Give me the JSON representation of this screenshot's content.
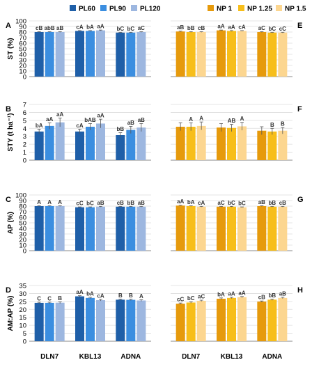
{
  "colors": {
    "PL60": "#1f5fa8",
    "PL90": "#3b8ee0",
    "PL120": "#9db7e0",
    "NP 1": "#e69a0c",
    "NP 1.25": "#f7be1a",
    "NP 1.5": "#fcd690"
  },
  "legend_left": [
    "PL60",
    "PL90",
    "PL120"
  ],
  "legend_right": [
    "NP 1",
    "NP 1.25",
    "NP 1.5"
  ],
  "chart_data": [
    {
      "type": "bar",
      "panel": "A",
      "ylabel": "ST (%)",
      "ylim": [
        0,
        100
      ],
      "yticks": [
        "0",
        "10",
        "20",
        "30",
        "40",
        "50",
        "60",
        "70",
        "80",
        "90",
        "100"
      ],
      "categories": [
        "DLN7",
        "KBL13",
        "ADNA"
      ],
      "series": [
        {
          "name": "PL60",
          "values": [
            80,
            82,
            79
          ],
          "errors": [
            0.6,
            0.6,
            0.6
          ]
        },
        {
          "name": "PL90",
          "values": [
            80,
            82,
            79
          ],
          "errors": [
            0.6,
            0.6,
            0.6
          ]
        },
        {
          "name": "PL120",
          "values": [
            80,
            83,
            80
          ],
          "errors": [
            0.6,
            0.6,
            0.6
          ]
        }
      ],
      "labels": [
        [
          "cB",
          "cA",
          "bC"
        ],
        [
          "abB",
          "bA",
          "bC"
        ],
        [
          "aB",
          "aA",
          "aC"
        ]
      ],
      "grid": true
    },
    {
      "type": "bar",
      "panel": "E",
      "ylim": [
        0,
        100
      ],
      "yticks": [
        "0",
        "10",
        "20",
        "30",
        "40",
        "50",
        "60",
        "70",
        "80",
        "90",
        "100"
      ],
      "categories": [
        "DLN7",
        "KBL13",
        "ADNA"
      ],
      "series": [
        {
          "name": "NP 1",
          "values": [
            81,
            83,
            80
          ],
          "errors": [
            0.6,
            0.6,
            0.6
          ]
        },
        {
          "name": "NP 1.25",
          "values": [
            80,
            82,
            79
          ],
          "errors": [
            0.6,
            0.6,
            0.6
          ]
        },
        {
          "name": "NP 1.5",
          "values": [
            80,
            82,
            79
          ],
          "errors": [
            0.6,
            0.6,
            0.6
          ]
        }
      ],
      "labels": [
        [
          "aB",
          "aA",
          "aC"
        ],
        [
          "bB",
          "aA",
          "bC"
        ],
        [
          "cB",
          "cA",
          "cC"
        ]
      ],
      "grid": true
    },
    {
      "type": "bar",
      "panel": "B",
      "ylabel": "STY (t ha⁻¹)",
      "ylim": [
        0,
        7
      ],
      "yticks": [
        "0",
        "1",
        "2",
        "3",
        "4",
        "5",
        "6",
        "7"
      ],
      "categories": [
        "DLN7",
        "KBL13",
        "ADNA"
      ],
      "series": [
        {
          "name": "PL60",
          "values": [
            3.6,
            3.6,
            3.15
          ],
          "errors": [
            0.3,
            0.3,
            0.3
          ]
        },
        {
          "name": "PL90",
          "values": [
            4.3,
            4.2,
            3.8
          ],
          "errors": [
            0.4,
            0.4,
            0.45
          ]
        },
        {
          "name": "PL120",
          "values": [
            4.75,
            4.6,
            4.1
          ],
          "errors": [
            0.55,
            0.55,
            0.5
          ]
        }
      ],
      "labels": [
        [
          "bA",
          "cA",
          "bB"
        ],
        [
          "aA",
          "bAB",
          "aB"
        ],
        [
          "aA",
          "aA",
          "aB"
        ]
      ],
      "grid": true
    },
    {
      "type": "bar",
      "panel": "F",
      "ylim": [
        0,
        7
      ],
      "yticks": [
        "0",
        "1",
        "2",
        "3",
        "4",
        "5",
        "6",
        "7"
      ],
      "categories": [
        "DLN7",
        "KBL13",
        "ADNA"
      ],
      "series": [
        {
          "name": "NP 1",
          "values": [
            4.2,
            4.1,
            3.7
          ],
          "errors": [
            0.5,
            0.5,
            0.5
          ]
        },
        {
          "name": "NP 1.25",
          "values": [
            4.2,
            4.05,
            3.6
          ],
          "errors": [
            0.5,
            0.45,
            0.4
          ]
        },
        {
          "name": "NP 1.5",
          "values": [
            4.3,
            4.25,
            3.7
          ],
          "errors": [
            0.5,
            0.5,
            0.4
          ]
        }
      ],
      "labels": [
        [
          "",
          "",
          ""
        ],
        [
          "A",
          "AB",
          "B"
        ],
        [
          "A",
          "A",
          "B"
        ]
      ],
      "grid": true
    },
    {
      "type": "bar",
      "panel": "C",
      "ylabel": "AP (%)",
      "ylim": [
        0,
        100
      ],
      "yticks": [
        "0",
        "10",
        "20",
        "30",
        "40",
        "50",
        "60",
        "70",
        "80",
        "90",
        "100"
      ],
      "categories": [
        "DLN7",
        "KBL13",
        "ADNA"
      ],
      "series": [
        {
          "name": "PL60",
          "values": [
            80,
            78,
            79
          ],
          "errors": [
            0.6,
            0.6,
            0.6
          ]
        },
        {
          "name": "PL90",
          "values": [
            80,
            78,
            79
          ],
          "errors": [
            0.6,
            0.6,
            0.6
          ]
        },
        {
          "name": "PL120",
          "values": [
            80,
            79,
            79
          ],
          "errors": [
            0.6,
            0.6,
            0.6
          ]
        }
      ],
      "labels": [
        [
          "A",
          "cC",
          "cB"
        ],
        [
          "A",
          "bC",
          "bB"
        ],
        [
          "A",
          "aB",
          "aB"
        ]
      ],
      "grid": true
    },
    {
      "type": "bar",
      "panel": "G",
      "ylim": [
        0,
        100
      ],
      "yticks": [
        "0",
        "10",
        "20",
        "30",
        "40",
        "50",
        "60",
        "70",
        "80",
        "90",
        "100"
      ],
      "categories": [
        "DLN7",
        "KBL13",
        "ADNA"
      ],
      "series": [
        {
          "name": "NP 1",
          "values": [
            81,
            79,
            80
          ],
          "errors": [
            0.6,
            0.6,
            0.6
          ]
        },
        {
          "name": "NP 1.25",
          "values": [
            80,
            79,
            79
          ],
          "errors": [
            0.6,
            0.6,
            0.6
          ]
        },
        {
          "name": "NP 1.5",
          "values": [
            79,
            78,
            79
          ],
          "errors": [
            0.6,
            0.6,
            0.6
          ]
        }
      ],
      "labels": [
        [
          "aA",
          "aC",
          "aB"
        ],
        [
          "bA",
          "bC",
          "bB"
        ],
        [
          "cA",
          "bC",
          "cB"
        ]
      ],
      "grid": true
    },
    {
      "type": "bar",
      "panel": "D",
      "ylabel": "AM:AP (%)",
      "ylim": [
        0,
        35
      ],
      "yticks": [
        "0",
        "5",
        "10",
        "15",
        "20",
        "25",
        "30",
        "35"
      ],
      "categories": [
        "DLN7",
        "KBL13",
        "ADNA"
      ],
      "series": [
        {
          "name": "PL60",
          "values": [
            24.1,
            28.2,
            26.1
          ],
          "errors": [
            0.4,
            0.4,
            0.4
          ]
        },
        {
          "name": "PL90",
          "values": [
            24.1,
            27.2,
            26.0
          ],
          "errors": [
            0.4,
            0.4,
            0.4
          ]
        },
        {
          "name": "PL120",
          "values": [
            24.2,
            25.8,
            25.6
          ],
          "errors": [
            0.5,
            0.5,
            0.5
          ]
        }
      ],
      "labels": [
        [
          "C",
          "aA",
          "B"
        ],
        [
          "C",
          "bA",
          "B"
        ],
        [
          "B",
          "cA",
          "A"
        ]
      ],
      "grid": true
    },
    {
      "type": "bar",
      "panel": "H",
      "ylim": [
        0,
        35
      ],
      "yticks": [
        "0",
        "5",
        "10",
        "15",
        "20",
        "25",
        "30",
        "35"
      ],
      "categories": [
        "DLN7",
        "KBL13",
        "ADNA"
      ],
      "series": [
        {
          "name": "NP 1",
          "values": [
            23.6,
            26.7,
            24.9
          ],
          "errors": [
            0.4,
            0.5,
            0.4
          ]
        },
        {
          "name": "NP 1.25",
          "values": [
            24.3,
            27.2,
            26.1
          ],
          "errors": [
            0.4,
            0.4,
            0.4
          ]
        },
        {
          "name": "NP 1.5",
          "values": [
            25.4,
            27.7,
            27.2
          ],
          "errors": [
            0.4,
            0.4,
            0.4
          ]
        }
      ],
      "labels": [
        [
          "cC",
          "bA",
          "cB"
        ],
        [
          "bC",
          "aA",
          "bB"
        ],
        [
          "aC",
          "aA",
          "aB"
        ]
      ],
      "grid": true
    }
  ]
}
